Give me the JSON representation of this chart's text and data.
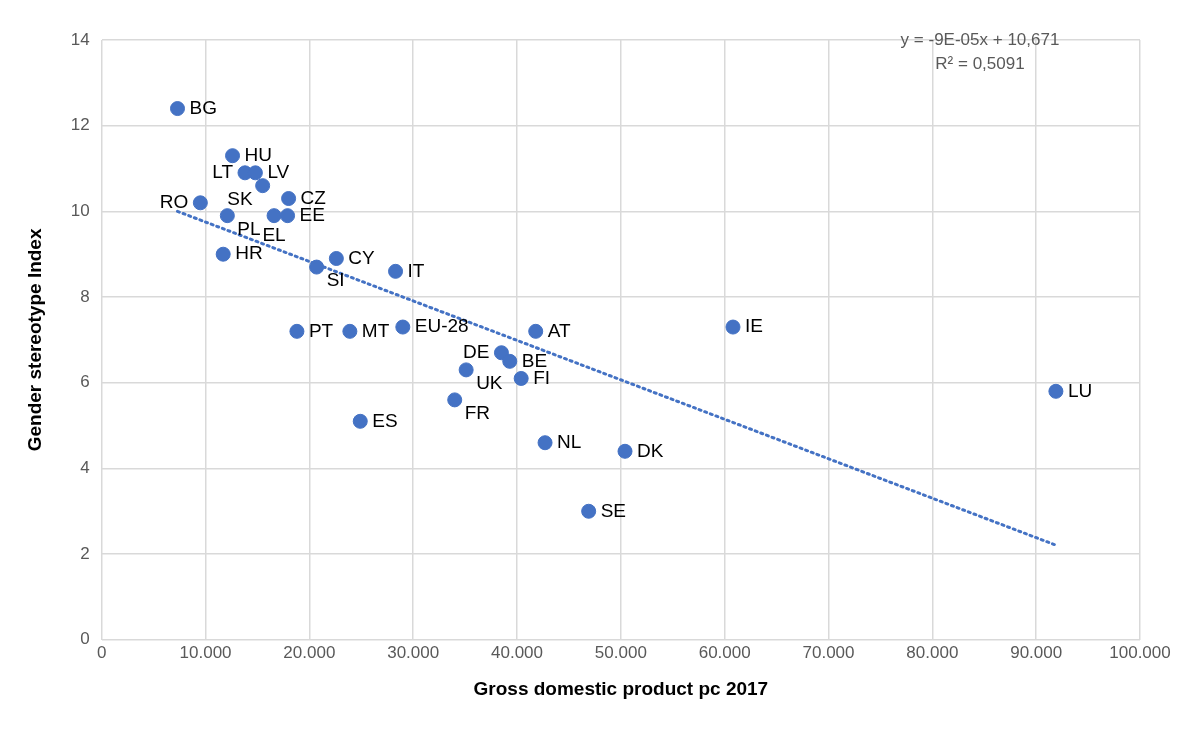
{
  "chart_data": {
    "type": "scatter",
    "xlabel": "Gross domestic product pc 2017",
    "ylabel": "Gender stereotype Index",
    "annotations": [
      "y = -9E-05x + 10,671",
      "R² = 0,5091"
    ],
    "xlim": [
      0,
      100000
    ],
    "xticks": [
      0,
      {
        "value": 10000,
        "label": "10.000"
      },
      {
        "value": 20000,
        "label": "20.000"
      },
      {
        "value": 30000,
        "label": "30.000"
      },
      {
        "value": 40000,
        "label": "40.000"
      },
      {
        "value": 50000,
        "label": "50.000"
      },
      {
        "value": 60000,
        "label": "60.000"
      },
      {
        "value": 70000,
        "label": "70.000"
      },
      {
        "value": 80000,
        "label": "80.000"
      },
      {
        "value": 90000,
        "label": "90.000"
      },
      {
        "value": 100000,
        "label": "100.000"
      }
    ],
    "ylim": [
      0,
      14
    ],
    "yticks": [
      0,
      2,
      4,
      6,
      8,
      10,
      12,
      14
    ],
    "grid": true,
    "legend": false,
    "marker": "circle",
    "series": [
      {
        "type": "scatter",
        "color": "#4472c4",
        "x": [
          7300,
          12600,
          13800,
          14800,
          15500,
          9500,
          18000,
          12100,
          16600,
          17900,
          11700,
          20700,
          22600,
          28300,
          18800,
          23900,
          29000,
          41800,
          38500,
          39300,
          35100,
          40400,
          34000,
          24900,
          42700,
          50400,
          46900,
          60800,
          91900
        ],
        "values": [
          12.4,
          11.3,
          10.9,
          10.9,
          10.6,
          10.2,
          10.3,
          9.9,
          9.9,
          9.9,
          9.0,
          8.7,
          8.9,
          8.6,
          7.2,
          7.2,
          7.3,
          7.2,
          6.7,
          6.5,
          6.3,
          6.1,
          5.6,
          5.1,
          4.6,
          4.4,
          3.0,
          7.3,
          5.8
        ],
        "value_labels": [
          "BG",
          "HU",
          "LT",
          "LV",
          "SK",
          "RO",
          "CZ",
          "PL",
          "EL",
          "EE",
          "HR",
          "SI",
          "CY",
          "IT",
          "PT",
          "MT",
          "EU-28",
          "AT",
          "DE",
          "BE",
          "UK",
          "FI",
          "FR",
          "ES",
          "NL",
          "DK",
          "SE",
          "IE",
          "LU"
        ]
      },
      {
        "type": "line",
        "color": "#4472c4",
        "line_style": "dotted",
        "marker": "none",
        "x": [
          7300,
          92000
        ],
        "values": [
          10.0,
          2.2
        ]
      }
    ]
  }
}
